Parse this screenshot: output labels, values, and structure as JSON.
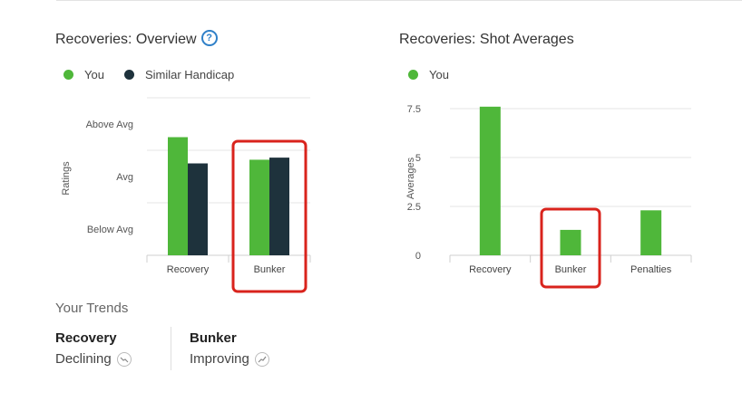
{
  "overview": {
    "title": "Recoveries: Overview",
    "help_icon": "?",
    "legend": [
      {
        "label": "You",
        "color": "#4fb73a"
      },
      {
        "label": "Similar Handicap",
        "color": "#1e323c"
      }
    ],
    "highlight_color": "#d9231c"
  },
  "averages": {
    "title": "Recoveries: Shot Averages",
    "legend": [
      {
        "label": "You",
        "color": "#4fb73a"
      }
    ]
  },
  "chart_data": [
    {
      "type": "bar",
      "title": "Recoveries: Overview",
      "ylabel": "Ratings",
      "xlabel": "",
      "categories": [
        "Recovery",
        "Bunker"
      ],
      "y_tick_labels": [
        "Above Avg",
        "Avg",
        "Below Avg"
      ],
      "ylim": [
        0,
        3
      ],
      "series": [
        {
          "name": "You",
          "color": "#4fb73a",
          "values": [
            2.25,
            1.82
          ]
        },
        {
          "name": "Similar Handicap",
          "color": "#1e323c",
          "values": [
            1.75,
            1.86
          ]
        }
      ],
      "highlighted_category": "Bunker",
      "grid": true,
      "legend_position": "top-left"
    },
    {
      "type": "bar",
      "title": "Recoveries: Shot Averages",
      "ylabel": "Averages",
      "xlabel": "",
      "categories": [
        "Recovery",
        "Bunker",
        "Penalties"
      ],
      "y_ticks": [
        0,
        2.5,
        5,
        7.5
      ],
      "y_tick_labels": [
        "0",
        "2.5",
        "5",
        "7.5"
      ],
      "ylim": [
        0,
        7.5
      ],
      "series": [
        {
          "name": "You",
          "color": "#4fb73a",
          "values": [
            7.6,
            1.3,
            2.3
          ]
        }
      ],
      "highlighted_category": "Bunker",
      "grid": true,
      "legend_position": "top-left"
    }
  ],
  "trends": {
    "title": "Your Trends",
    "items": [
      {
        "name": "Recovery",
        "status": "Declining",
        "icon": "trend-down-icon"
      },
      {
        "name": "Bunker",
        "status": "Improving",
        "icon": "trend-up-icon"
      }
    ]
  }
}
